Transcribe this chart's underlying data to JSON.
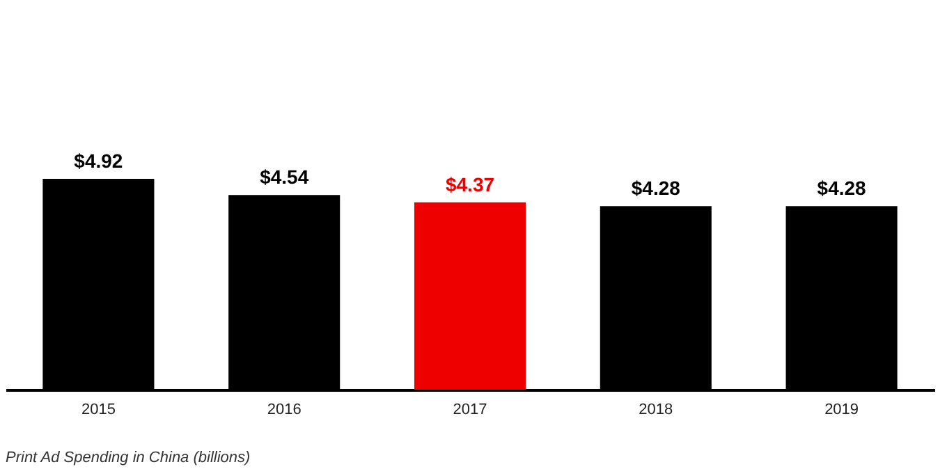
{
  "chart_data": {
    "type": "bar",
    "categories": [
      "2015",
      "2016",
      "2017",
      "2018",
      "2019"
    ],
    "values": [
      4.92,
      4.54,
      4.37,
      4.28,
      4.28
    ],
    "colors": [
      "#000000",
      "#000000",
      "#ee0000",
      "#000000",
      "#000000"
    ],
    "value_labels": [
      "$4.92",
      "$4.54",
      "$4.37",
      "$4.28",
      "$4.28"
    ],
    "annotations": [
      "Print Ad Spending in China (billions)"
    ]
  }
}
